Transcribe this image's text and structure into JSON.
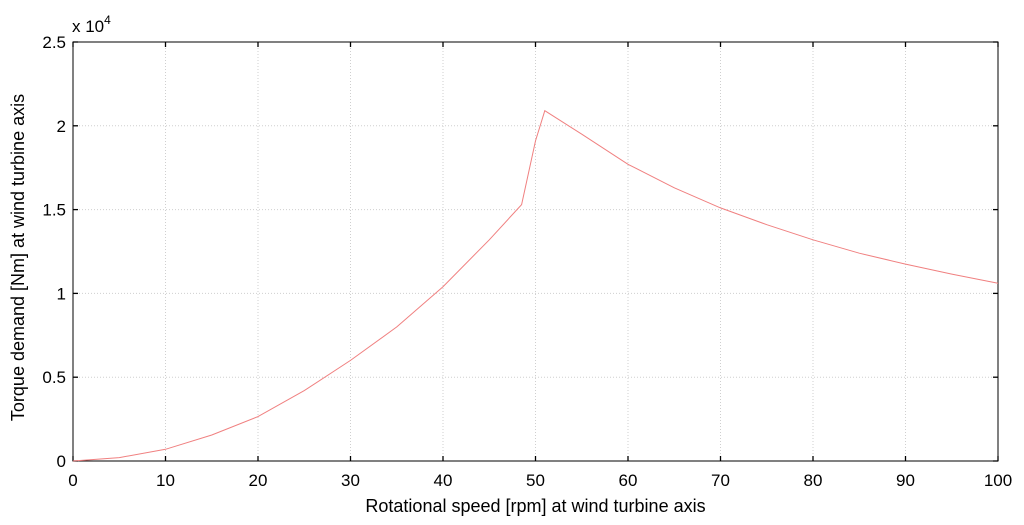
{
  "chart_data": {
    "type": "line",
    "title": "",
    "xlabel": "Rotational speed [rpm] at wind turbine axis",
    "ylabel": "Torque demand [Nm] at wind turbine axis",
    "xlim": [
      0,
      100
    ],
    "ylim": [
      0,
      25000
    ],
    "y_exponent_label": "x 10",
    "y_exponent_power": "4",
    "grid": true,
    "x_ticks": [
      0,
      10,
      20,
      30,
      40,
      50,
      60,
      70,
      80,
      90,
      100
    ],
    "x_tick_labels": [
      "0",
      "10",
      "20",
      "30",
      "40",
      "50",
      "60",
      "70",
      "80",
      "90",
      "100"
    ],
    "y_ticks": [
      0,
      5000,
      10000,
      15000,
      20000,
      25000
    ],
    "y_tick_labels": [
      "0",
      "0.5",
      "1",
      "1.5",
      "2",
      "2.5"
    ],
    "series": [
      {
        "color": "#f08080",
        "x": [
          0,
          5,
          10,
          15,
          20,
          25,
          30,
          35,
          40,
          45,
          48.5,
          50,
          51,
          55,
          60,
          65,
          70,
          75,
          80,
          85,
          90,
          95,
          100
        ],
        "y": [
          0,
          200,
          700,
          1550,
          2650,
          4200,
          6000,
          8000,
          10400,
          13200,
          15300,
          19100,
          20900,
          19500,
          17700,
          16300,
          15100,
          14100,
          13200,
          12400,
          11750,
          11150,
          10600
        ]
      }
    ]
  }
}
